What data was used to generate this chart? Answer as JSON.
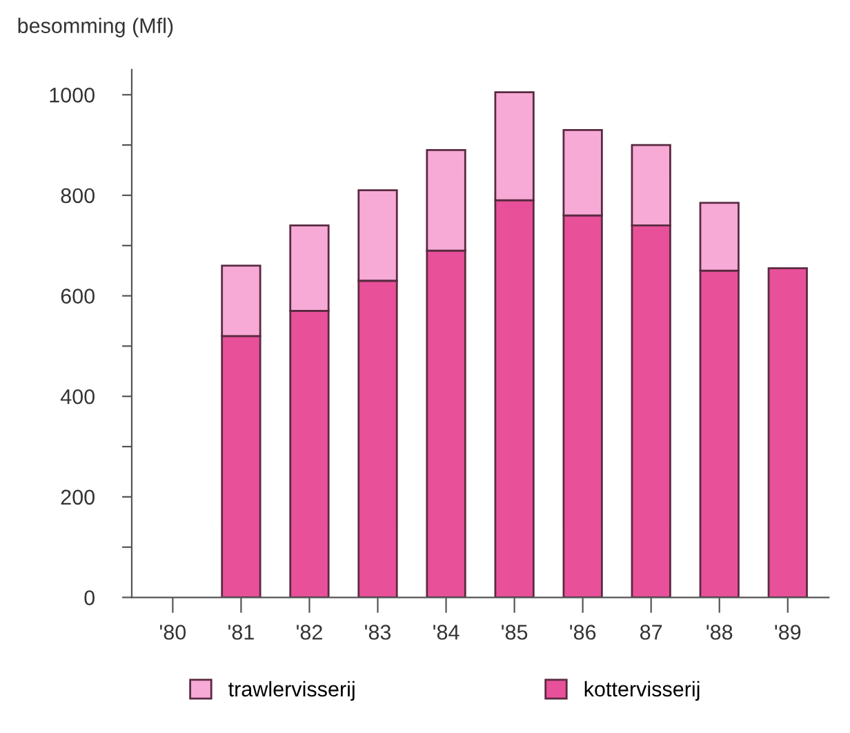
{
  "chart_data": {
    "type": "bar",
    "stacked": true,
    "ylabel": "besomming (Mfl)",
    "categories": [
      "'80",
      "'81",
      "'82",
      "'83",
      "'84",
      "'85",
      "'86",
      "87",
      "'88",
      "'89"
    ],
    "series": [
      {
        "name": "kottervisserij",
        "color": "#e8509a",
        "values": [
          null,
          520,
          570,
          630,
          690,
          790,
          760,
          740,
          650,
          655
        ]
      },
      {
        "name": "trawlervisserij",
        "color": "#f7aad6",
        "values": [
          null,
          140,
          170,
          180,
          200,
          215,
          170,
          160,
          135,
          0
        ]
      }
    ],
    "ylim": [
      0,
      1050
    ],
    "yticks": [
      0,
      {
        "value": 100,
        "label": null
      },
      200,
      {
        "value": 300,
        "label": null
      },
      400,
      {
        "value": 500,
        "label": null
      },
      600,
      {
        "value": 700,
        "label": null
      },
      800,
      {
        "value": 900,
        "label": null
      },
      1000
    ],
    "grid": false,
    "legend": "bottom"
  }
}
